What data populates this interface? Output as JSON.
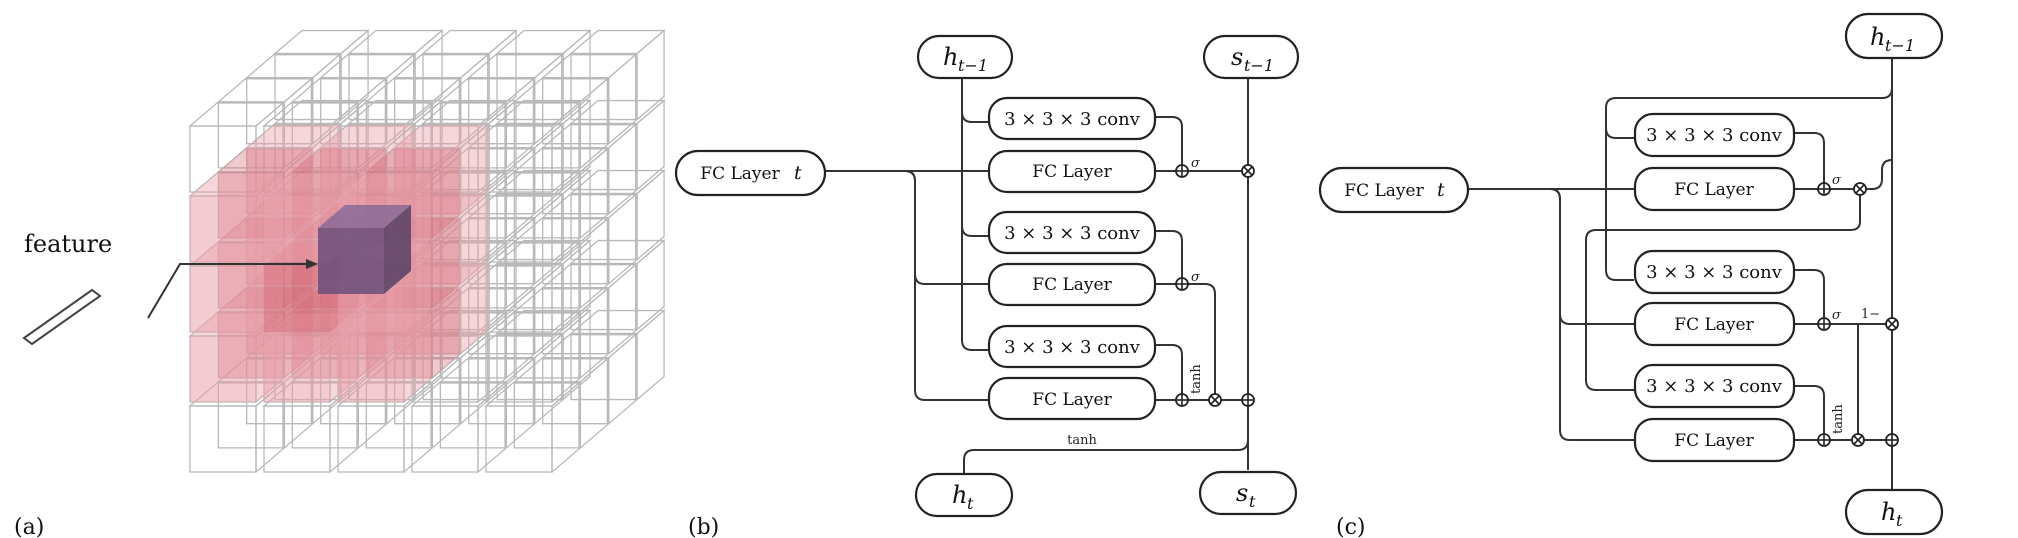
{
  "panel_a": {
    "tag": "(a)",
    "feature_label": "feature"
  },
  "panel_b": {
    "tag": "(b)",
    "fc_input": "FC Layer",
    "fc_input_var": "t",
    "h_prev_base": "h",
    "h_prev_sub": "t−1",
    "s_prev_base": "s",
    "s_prev_sub": "t−1",
    "h_out_base": "h",
    "h_out_sub": "t",
    "s_out_base": "s",
    "s_out_sub": "t",
    "conv_label": "3 × 3 × 3 conv",
    "fc_label": "FC Layer",
    "sigma": "σ",
    "tanh": "tanh",
    "tanh_bottom": "tanh"
  },
  "panel_c": {
    "tag": "(c)",
    "fc_input": "FC Layer",
    "fc_input_var": "t",
    "h_prev_base": "h",
    "h_prev_sub": "t−1",
    "h_out_base": "h",
    "h_out_sub": "t",
    "conv_label": "3 × 3 × 3 conv",
    "fc_label": "FC Layer",
    "sigma": "σ",
    "one_minus": "1−",
    "tanh": "tanh"
  },
  "colors": {
    "light_red": "#e9a3ad",
    "mid_red": "#d56a78",
    "center_purple": "#6b4e7a",
    "wire": "#333333",
    "cube_outline": "#b9b9b9"
  }
}
